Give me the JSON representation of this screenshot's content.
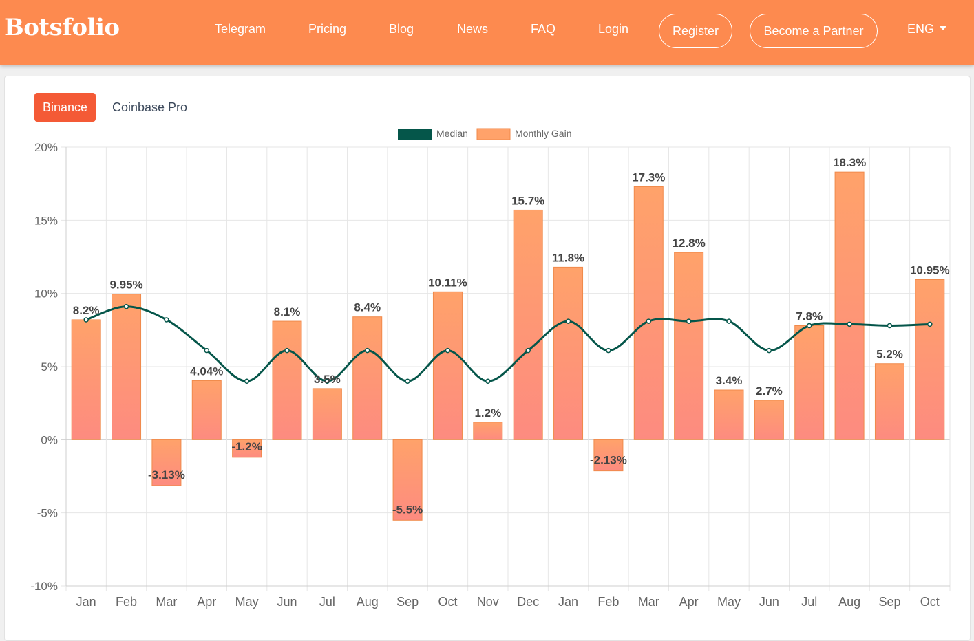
{
  "navbar": {
    "brand": "Botsfolio",
    "links": [
      "Telegram",
      "Pricing",
      "Blog",
      "News",
      "FAQ",
      "Login"
    ],
    "register_label": "Register",
    "partner_label": "Become a Partner",
    "language": "ENG"
  },
  "tabs": {
    "active": "Binance",
    "inactive": "Coinbase Pro"
  },
  "colors": {
    "brand": "#fd8a4f",
    "active_tab": "#f45a36",
    "median_line": "#05564a",
    "bar_top": "#ffa26a",
    "bar_bottom": "#fd8b80"
  },
  "chart_data": {
    "type": "bar",
    "categories": [
      "Jan",
      "Feb",
      "Mar",
      "Apr",
      "May",
      "Jun",
      "Jul",
      "Aug",
      "Sep",
      "Oct",
      "Nov",
      "Dec",
      "Jan",
      "Feb",
      "Mar",
      "Apr",
      "May",
      "Jun",
      "Jul",
      "Aug",
      "Sep",
      "Oct"
    ],
    "series": [
      {
        "name": "Monthly Gain",
        "type": "bar",
        "values": [
          8.2,
          9.95,
          -3.13,
          4.04,
          -1.2,
          8.1,
          3.5,
          8.4,
          -5.5,
          10.11,
          1.2,
          15.7,
          11.8,
          -2.13,
          17.3,
          12.8,
          3.4,
          2.7,
          7.8,
          18.3,
          5.2,
          10.95
        ],
        "labels": [
          "8.2%",
          "9.95%",
          "-3.13%",
          "4.04%",
          "-1.2%",
          "8.1%",
          "3.5%",
          "8.4%",
          "-5.5%",
          "10.11%",
          "1.2%",
          "15.7%",
          "11.8%",
          "-2.13%",
          "17.3%",
          "12.8%",
          "3.4%",
          "2.7%",
          "7.8%",
          "18.3%",
          "5.2%",
          "10.95%"
        ]
      },
      {
        "name": "Median",
        "type": "line",
        "values": [
          8.2,
          9.1,
          8.2,
          6.1,
          4.0,
          6.1,
          4.0,
          6.1,
          4.0,
          6.1,
          4.0,
          6.1,
          8.1,
          6.1,
          8.1,
          8.1,
          8.1,
          6.1,
          7.8,
          7.9,
          7.8,
          7.9
        ]
      }
    ],
    "yticks": [
      "20%",
      "15%",
      "10%",
      "5%",
      "0%",
      "-5%",
      "-10%"
    ],
    "ylim": [
      -10,
      20
    ],
    "legend_position": "top-center",
    "grid": true
  }
}
